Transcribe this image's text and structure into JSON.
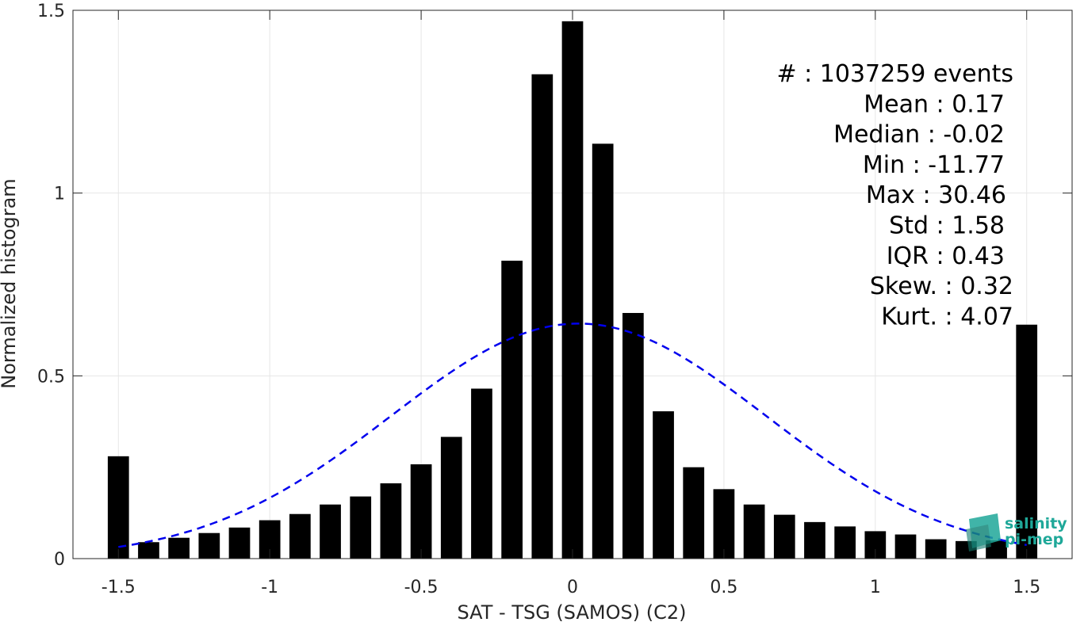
{
  "chart_data": {
    "type": "bar",
    "xlabel": "SAT - TSG (SAMOS) (C2)",
    "ylabel": "Normalized histogram",
    "xlim": [
      -1.65,
      1.65
    ],
    "ylim": [
      0,
      1.5
    ],
    "xticks": [
      -1.5,
      -1,
      -0.5,
      0,
      0.5,
      1,
      1.5
    ],
    "xtick_labels": [
      "-1.5",
      "-1",
      "-0.5",
      "0",
      "0.5",
      "1",
      "1.5"
    ],
    "yticks": [
      0,
      0.5,
      1,
      1.5
    ],
    "ytick_labels": [
      "0",
      "0.5",
      "1",
      "1.5"
    ],
    "grid": true,
    "bar_color": "#000000",
    "bars": [
      {
        "x": -1.5,
        "y": 0.28
      },
      {
        "x": -1.4,
        "y": 0.045
      },
      {
        "x": -1.3,
        "y": 0.057
      },
      {
        "x": -1.2,
        "y": 0.07
      },
      {
        "x": -1.1,
        "y": 0.085
      },
      {
        "x": -1.0,
        "y": 0.105
      },
      {
        "x": -0.9,
        "y": 0.122
      },
      {
        "x": -0.8,
        "y": 0.148
      },
      {
        "x": -0.7,
        "y": 0.17
      },
      {
        "x": -0.6,
        "y": 0.206
      },
      {
        "x": -0.5,
        "y": 0.258
      },
      {
        "x": -0.4,
        "y": 0.333
      },
      {
        "x": -0.3,
        "y": 0.465
      },
      {
        "x": -0.2,
        "y": 0.815
      },
      {
        "x": -0.1,
        "y": 1.325
      },
      {
        "x": 0.0,
        "y": 1.47
      },
      {
        "x": 0.1,
        "y": 1.135
      },
      {
        "x": 0.2,
        "y": 0.672
      },
      {
        "x": 0.3,
        "y": 0.403
      },
      {
        "x": 0.4,
        "y": 0.25
      },
      {
        "x": 0.5,
        "y": 0.19
      },
      {
        "x": 0.6,
        "y": 0.148
      },
      {
        "x": 0.7,
        "y": 0.12
      },
      {
        "x": 0.8,
        "y": 0.1
      },
      {
        "x": 0.9,
        "y": 0.088
      },
      {
        "x": 1.0,
        "y": 0.075
      },
      {
        "x": 1.1,
        "y": 0.066
      },
      {
        "x": 1.2,
        "y": 0.053
      },
      {
        "x": 1.3,
        "y": 0.048
      },
      {
        "x": 1.4,
        "y": 0.05
      },
      {
        "x": 1.5,
        "y": 0.64
      }
    ],
    "fit_curve": {
      "style": "dashed",
      "color": "#0000ee",
      "mean": 0.02,
      "std": 0.62,
      "peak": 0.643,
      "x_range": [
        -1.5,
        1.5
      ]
    },
    "annotations": [
      "#  : 1037259 events",
      "Mean : 0.17",
      "Median : -0.02",
      "Min : -11.77",
      "Max : 30.46",
      "Std : 1.58",
      "IQR : 0.43",
      "Skew. : 0.32",
      "Kurt. : 4.07"
    ]
  },
  "logo": {
    "line1": "salinity",
    "line2": "pi-mep",
    "color": "#1fa899"
  }
}
